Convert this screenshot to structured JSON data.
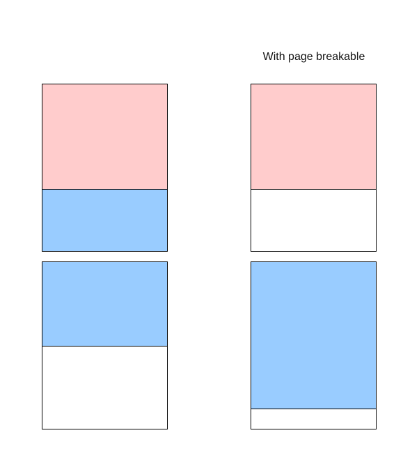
{
  "caption_right": "With page breakable",
  "colors": {
    "block_a": "#ffcccc",
    "block_b": "#99ccff",
    "page_bg": "#ffffff",
    "border": "#000000"
  }
}
